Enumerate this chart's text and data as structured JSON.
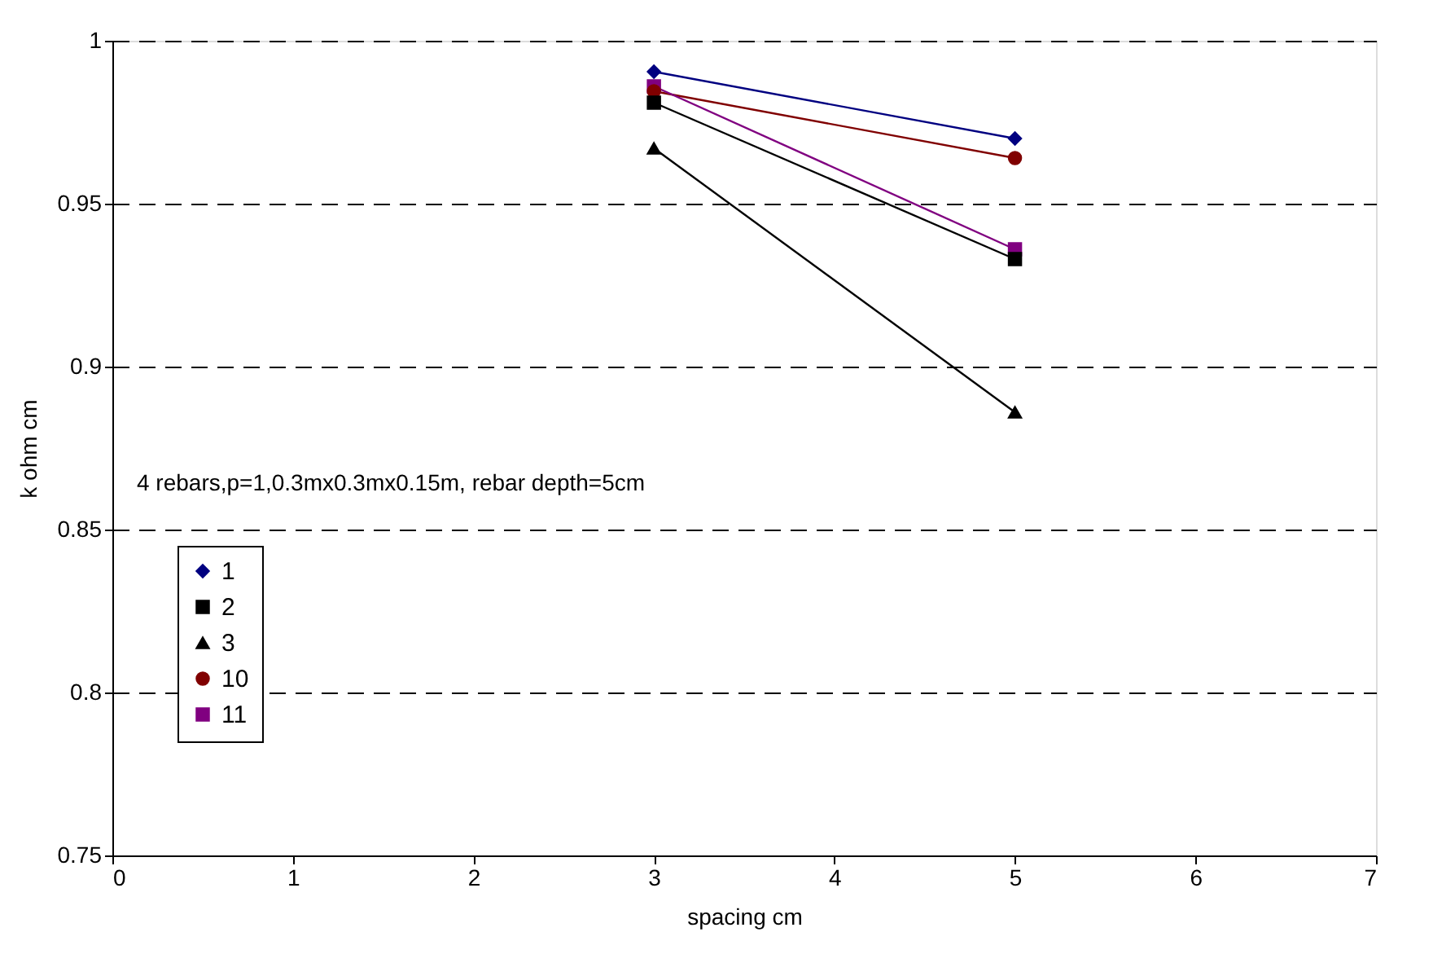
{
  "chart_data": {
    "type": "line",
    "xlabel": "spacing cm",
    "ylabel": "k ohm cm",
    "x": [
      3,
      5
    ],
    "series": [
      {
        "name": "1",
        "color": "#000080",
        "marker": "diamond",
        "values": [
          0.9905,
          0.97
        ]
      },
      {
        "name": "2",
        "color": "#000000",
        "marker": "square",
        "values": [
          0.981,
          0.933
        ]
      },
      {
        "name": "3",
        "color": "#000000",
        "marker": "triangle",
        "values": [
          0.967,
          0.886
        ]
      },
      {
        "name": "10",
        "color": "#800000",
        "marker": "circle",
        "values": [
          0.9845,
          0.964
        ]
      },
      {
        "name": "11",
        "color": "#800080",
        "marker": "square",
        "values": [
          0.986,
          0.936
        ]
      }
    ],
    "xlim": [
      0,
      7
    ],
    "xticks": [
      0,
      1,
      2,
      3,
      4,
      5,
      6,
      7
    ],
    "ylim": [
      0.75,
      1
    ],
    "yticks": [
      0.75,
      0.8,
      0.85,
      0.9,
      0.95,
      1
    ],
    "grid": "y",
    "line_style": "solid",
    "legend": "bottom left",
    "annotations": [
      "4 rebars,p=1,0.3mx0.3mx0.15m, rebar depth=5cm"
    ]
  }
}
